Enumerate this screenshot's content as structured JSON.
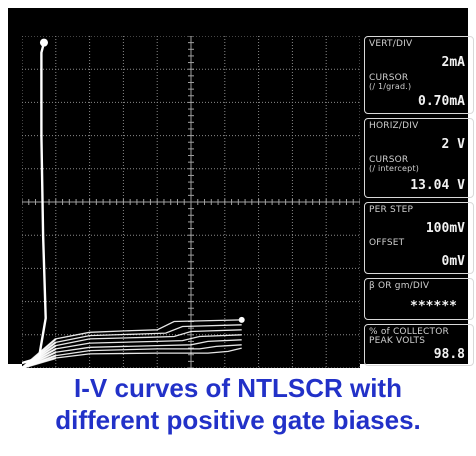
{
  "caption": {
    "line1": "I-V curves of NTLSCR with",
    "line2": "different positive gate biases."
  },
  "readouts": {
    "vert_div_label": "VERT/DIV",
    "vert_div_value": "2mA",
    "vert_cursor_label": "CURSOR",
    "vert_cursor_sublabel": "(∕ 1/grad.)",
    "vert_cursor_value": "0.70mA",
    "horiz_div_label": "HORIZ/DIV",
    "horiz_div_value": "2 V",
    "horiz_cursor_label": "CURSOR",
    "horiz_cursor_sublabel": "(∕ intercept)",
    "horiz_cursor_value": "13.04 V",
    "per_step_label": "PER STEP",
    "per_step_value": "100mV",
    "offset_label": "OFFSET",
    "offset_value": "0mV",
    "beta_label": "β OR gm/DIV",
    "beta_value": "******",
    "collector_label_1": "% of COLLECTOR",
    "collector_label_2": "PEAK VOLTS",
    "collector_value": "98.8"
  },
  "chart_data": {
    "type": "line",
    "xunit": "V",
    "yunit": "mA",
    "xlim": [
      0,
      20
    ],
    "ylim": [
      0,
      20
    ],
    "x_per_div": 2,
    "y_per_div": 2,
    "grid": true,
    "trace_color": "#ffffff",
    "snapback": {
      "points": [
        [
          0,
          0.3
        ],
        [
          1.0,
          0.6
        ],
        [
          1.4,
          3.0
        ],
        [
          1.25,
          8.0
        ],
        [
          1.15,
          14.0
        ],
        [
          1.15,
          19.0
        ],
        [
          1.3,
          19.6
        ]
      ]
    },
    "series": [
      {
        "values": [
          [
            0,
            0
          ],
          [
            2.0,
            0.6
          ],
          [
            4.0,
            0.85
          ],
          [
            8.0,
            0.9
          ],
          [
            11.0,
            0.9
          ],
          [
            12.2,
            1.0
          ],
          [
            13.0,
            1.2
          ]
        ]
      },
      {
        "values": [
          [
            0,
            0
          ],
          [
            2.0,
            0.75
          ],
          [
            4.0,
            1.05
          ],
          [
            8.0,
            1.15
          ],
          [
            10.5,
            1.15
          ],
          [
            11.5,
            1.3
          ],
          [
            13.0,
            1.4
          ]
        ]
      },
      {
        "values": [
          [
            0,
            0
          ],
          [
            2.0,
            0.95
          ],
          [
            4.0,
            1.25
          ],
          [
            8.0,
            1.35
          ],
          [
            10.0,
            1.4
          ],
          [
            11.0,
            1.6
          ],
          [
            13.0,
            1.7
          ]
        ]
      },
      {
        "values": [
          [
            0,
            0
          ],
          [
            2.0,
            1.15
          ],
          [
            4.0,
            1.5
          ],
          [
            8.0,
            1.6
          ],
          [
            9.5,
            1.65
          ],
          [
            10.5,
            1.9
          ],
          [
            13.0,
            2.0
          ]
        ]
      },
      {
        "values": [
          [
            0,
            0
          ],
          [
            2.0,
            1.35
          ],
          [
            4.0,
            1.75
          ],
          [
            7.5,
            1.85
          ],
          [
            9.0,
            1.9
          ],
          [
            10.0,
            2.2
          ],
          [
            13.0,
            2.3
          ]
        ]
      },
      {
        "values": [
          [
            0,
            0
          ],
          [
            2.0,
            1.55
          ],
          [
            4.0,
            1.95
          ],
          [
            7.0,
            2.05
          ],
          [
            8.5,
            2.1
          ],
          [
            9.5,
            2.5
          ],
          [
            13.0,
            2.6
          ]
        ]
      },
      {
        "values": [
          [
            0,
            0
          ],
          [
            2.0,
            1.75
          ],
          [
            4.0,
            2.15
          ],
          [
            6.5,
            2.25
          ],
          [
            8.0,
            2.3
          ],
          [
            9.0,
            2.8
          ],
          [
            13.0,
            2.9
          ]
        ]
      }
    ]
  }
}
